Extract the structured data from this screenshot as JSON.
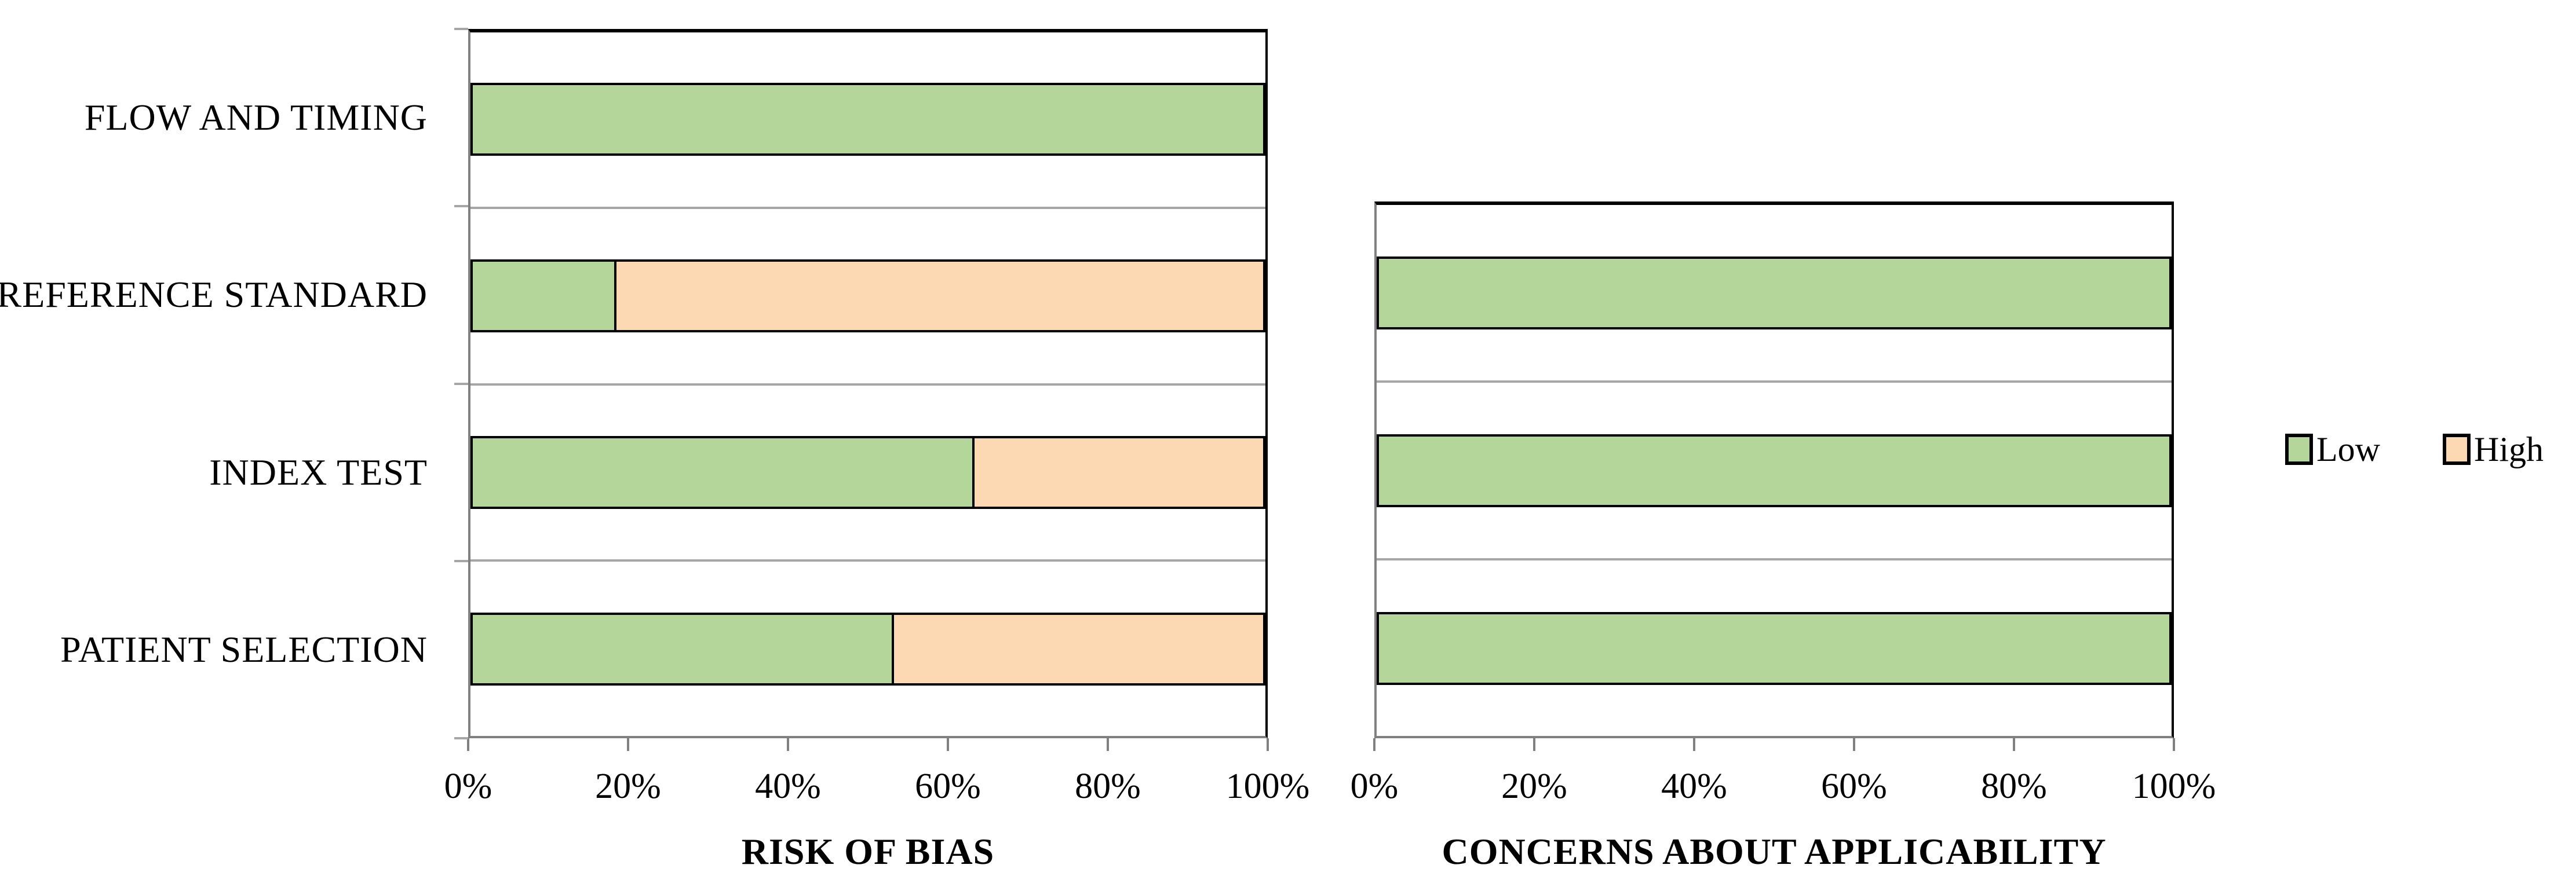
{
  "figure": {
    "background": "#ffffff",
    "description": "QUADAS-2 quality assessment summary: stacked horizontal percentage bars"
  },
  "colors": {
    "low": "#b5d69b",
    "high": "#fcd9b3",
    "bar_border": "#000000",
    "gridline": "#a6a6a6",
    "axis_line": "#808080"
  },
  "legend": {
    "items": [
      {
        "label": "Low",
        "color": "#b5d69b"
      },
      {
        "label": "High",
        "color": "#fcd9b3"
      }
    ]
  },
  "chart_data": [
    {
      "type": "bar",
      "orientation": "horizontal",
      "stacked": true,
      "unit": "percent",
      "title": "RISK OF BIAS",
      "categories_top_to_bottom": [
        "FLOW AND TIMING",
        "REFERENCE STANDARD",
        "INDEX TEST",
        "PATIENT SELECTION"
      ],
      "category_labels_shown": true,
      "series": [
        {
          "name": "Low",
          "color": "#b5d69b",
          "values": [
            100,
            18.2,
            63.5,
            53.3
          ]
        },
        {
          "name": "High",
          "color": "#fcd9b3",
          "values": [
            0,
            81.8,
            36.5,
            46.7
          ]
        }
      ],
      "x_ticks": [
        "0%",
        "20%",
        "40%",
        "60%",
        "80%",
        "100%"
      ],
      "xlim": [
        0,
        100
      ],
      "grid": "category-band-separators",
      "legend_position": "right"
    },
    {
      "type": "bar",
      "orientation": "horizontal",
      "stacked": true,
      "unit": "percent",
      "title": "CONCERNS ABOUT APPLICABILITY",
      "categories_top_to_bottom": [
        "REFERENCE STANDARD",
        "INDEX TEST",
        "PATIENT SELECTION"
      ],
      "category_labels_shown": false,
      "series": [
        {
          "name": "Low",
          "color": "#b5d69b",
          "values": [
            100,
            100,
            100
          ]
        },
        {
          "name": "High",
          "color": "#fcd9b3",
          "values": [
            0,
            0,
            0
          ]
        }
      ],
      "x_ticks": [
        "0%",
        "20%",
        "40%",
        "60%",
        "80%",
        "100%"
      ],
      "xlim": [
        0,
        100
      ],
      "grid": "category-band-separators",
      "legend_position": "right"
    }
  ]
}
